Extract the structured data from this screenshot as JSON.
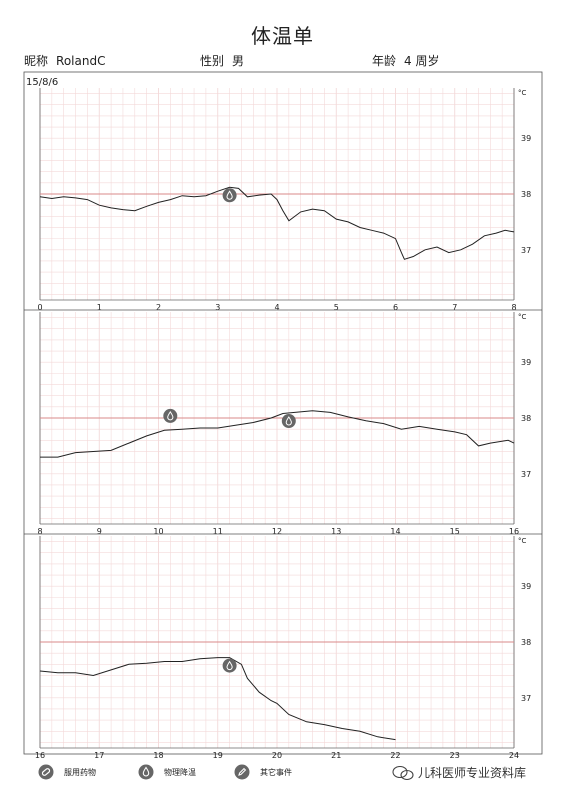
{
  "header": {
    "title": "体温单",
    "nickname_label": "昵称",
    "nickname_value": "RolandC",
    "gender_label": "性别",
    "gender_value": "男",
    "age_label": "年龄",
    "age_value": "4 周岁"
  },
  "legend": {
    "medication": "服用药物",
    "cooling": "物理降温",
    "event": "其它事件"
  },
  "watermark": "儿科医师专业资料库",
  "chart_data": {
    "type": "line",
    "date_label": "15/8/6",
    "unit": "°C",
    "y_ticks": [
      37,
      38,
      39
    ],
    "ylim": [
      36.1,
      39.9
    ],
    "threshold": 38,
    "colors": {
      "grid": "#f3d9d9",
      "threshold": "#d98a8a",
      "line": "#222222",
      "icon": "#666666"
    },
    "panels": [
      {
        "x_range": [
          0,
          8
        ],
        "x_ticks": [
          "0",
          "1",
          "2",
          "3",
          "4",
          "5",
          "6",
          "7",
          "8"
        ],
        "values": [
          [
            0.0,
            37.95
          ],
          [
            0.2,
            37.92
          ],
          [
            0.4,
            37.95
          ],
          [
            0.6,
            37.93
          ],
          [
            0.8,
            37.9
          ],
          [
            1.0,
            37.8
          ],
          [
            1.2,
            37.75
          ],
          [
            1.4,
            37.72
          ],
          [
            1.6,
            37.7
          ],
          [
            1.8,
            37.78
          ],
          [
            2.0,
            37.85
          ],
          [
            2.2,
            37.9
          ],
          [
            2.4,
            37.97
          ],
          [
            2.6,
            37.95
          ],
          [
            2.8,
            37.97
          ],
          [
            3.0,
            38.05
          ],
          [
            3.2,
            38.12
          ],
          [
            3.35,
            38.1
          ],
          [
            3.5,
            37.95
          ],
          [
            3.7,
            37.98
          ],
          [
            3.9,
            38.0
          ],
          [
            4.0,
            37.9
          ],
          [
            4.1,
            37.7
          ],
          [
            4.2,
            37.52
          ],
          [
            4.4,
            37.68
          ],
          [
            4.6,
            37.73
          ],
          [
            4.8,
            37.7
          ],
          [
            5.0,
            37.55
          ],
          [
            5.2,
            37.5
          ],
          [
            5.4,
            37.4
          ],
          [
            5.6,
            37.35
          ],
          [
            5.8,
            37.3
          ],
          [
            6.0,
            37.2
          ],
          [
            6.1,
            36.95
          ],
          [
            6.15,
            36.83
          ],
          [
            6.3,
            36.88
          ],
          [
            6.5,
            37.0
          ],
          [
            6.7,
            37.05
          ],
          [
            6.9,
            36.95
          ],
          [
            7.1,
            37.0
          ],
          [
            7.3,
            37.1
          ],
          [
            7.5,
            37.25
          ],
          [
            7.7,
            37.3
          ],
          [
            7.85,
            37.35
          ],
          [
            8.0,
            37.32
          ]
        ],
        "markers": [
          {
            "type": "cooling",
            "x": 3.2
          }
        ]
      },
      {
        "x_range": [
          8,
          16
        ],
        "x_ticks": [
          "8",
          "9",
          "10",
          "11",
          "12",
          "13",
          "14",
          "15",
          "16"
        ],
        "values": [
          [
            8.0,
            37.3
          ],
          [
            8.3,
            37.3
          ],
          [
            8.6,
            37.38
          ],
          [
            8.9,
            37.4
          ],
          [
            9.2,
            37.42
          ],
          [
            9.5,
            37.55
          ],
          [
            9.8,
            37.68
          ],
          [
            10.1,
            37.78
          ],
          [
            10.4,
            37.8
          ],
          [
            10.7,
            37.82
          ],
          [
            11.0,
            37.82
          ],
          [
            11.3,
            37.87
          ],
          [
            11.6,
            37.92
          ],
          [
            11.9,
            38.0
          ],
          [
            12.1,
            38.08
          ],
          [
            12.3,
            38.1
          ],
          [
            12.6,
            38.13
          ],
          [
            12.9,
            38.1
          ],
          [
            13.2,
            38.02
          ],
          [
            13.5,
            37.95
          ],
          [
            13.8,
            37.9
          ],
          [
            14.1,
            37.8
          ],
          [
            14.4,
            37.85
          ],
          [
            14.7,
            37.8
          ],
          [
            15.0,
            37.75
          ],
          [
            15.2,
            37.7
          ],
          [
            15.4,
            37.5
          ],
          [
            15.6,
            37.55
          ],
          [
            15.9,
            37.6
          ],
          [
            16.0,
            37.55
          ]
        ],
        "markers": [
          {
            "type": "cooling",
            "x": 10.2
          },
          {
            "type": "cooling",
            "x": 12.2
          }
        ]
      },
      {
        "x_range": [
          16,
          24
        ],
        "x_ticks": [
          "16",
          "17",
          "18",
          "19",
          "20",
          "21",
          "22",
          "23",
          "24"
        ],
        "values": [
          [
            16.0,
            37.48
          ],
          [
            16.3,
            37.45
          ],
          [
            16.6,
            37.45
          ],
          [
            16.9,
            37.4
          ],
          [
            17.2,
            37.5
          ],
          [
            17.5,
            37.6
          ],
          [
            17.8,
            37.62
          ],
          [
            18.1,
            37.65
          ],
          [
            18.4,
            37.65
          ],
          [
            18.7,
            37.7
          ],
          [
            19.0,
            37.72
          ],
          [
            19.2,
            37.72
          ],
          [
            19.4,
            37.6
          ],
          [
            19.5,
            37.35
          ],
          [
            19.7,
            37.1
          ],
          [
            19.9,
            36.95
          ],
          [
            20.0,
            36.9
          ],
          [
            20.2,
            36.7
          ],
          [
            20.5,
            36.57
          ],
          [
            20.8,
            36.52
          ],
          [
            21.1,
            36.45
          ],
          [
            21.4,
            36.4
          ],
          [
            21.7,
            36.3
          ],
          [
            22.0,
            36.25
          ]
        ],
        "markers": [
          {
            "type": "cooling",
            "x": 19.2
          }
        ]
      }
    ]
  }
}
